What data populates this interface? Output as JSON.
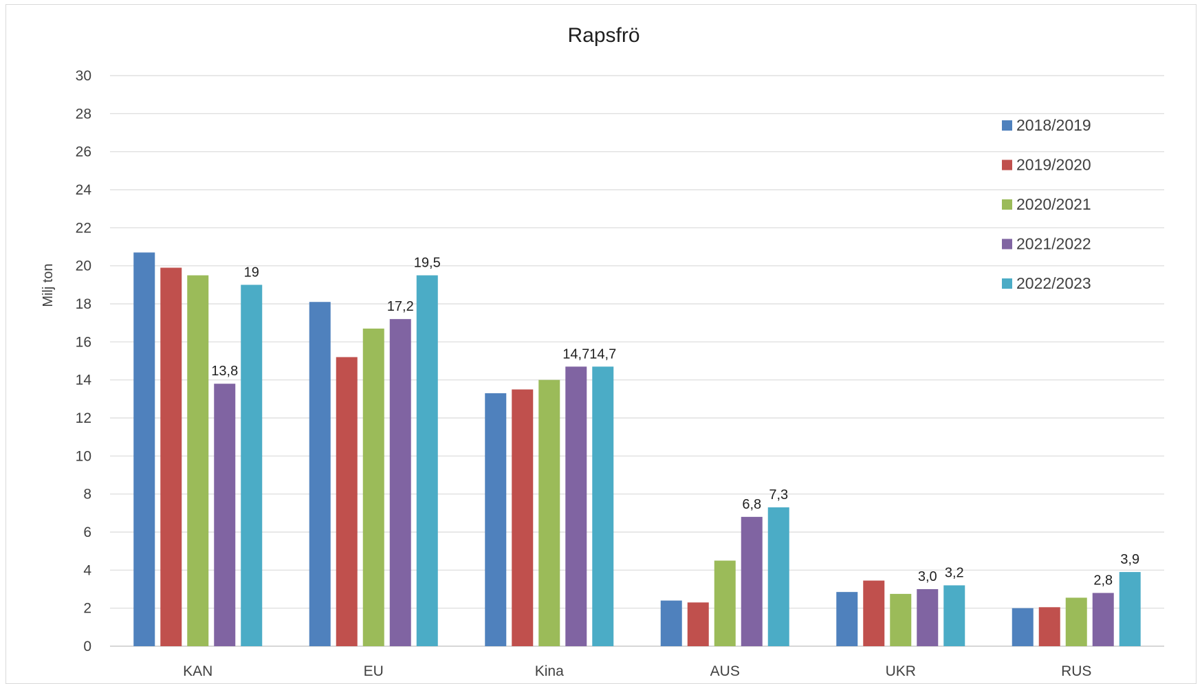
{
  "chart_data": {
    "type": "bar",
    "title": "Rapsfrö",
    "xlabel": "",
    "ylabel": "Milj ton",
    "ylim": [
      0,
      30
    ],
    "yticks": [
      0,
      2,
      4,
      6,
      8,
      10,
      12,
      14,
      16,
      18,
      20,
      22,
      24,
      26,
      28,
      30
    ],
    "grid": true,
    "legend_position": "right",
    "categories": [
      "KAN",
      "EU",
      "Kina",
      "AUS",
      "UKR",
      "RUS"
    ],
    "series": [
      {
        "name": "2018/2019",
        "color": "#4F81BD",
        "values": [
          20.7,
          18.1,
          13.3,
          2.4,
          2.85,
          2.0
        ]
      },
      {
        "name": "2019/2020",
        "color": "#C0504D",
        "values": [
          19.9,
          15.2,
          13.5,
          2.3,
          3.45,
          2.05
        ]
      },
      {
        "name": "2020/2021",
        "color": "#9BBB59",
        "values": [
          19.5,
          16.7,
          14.0,
          4.5,
          2.75,
          2.55
        ]
      },
      {
        "name": "2021/2022",
        "color": "#8064A2",
        "values": [
          13.8,
          17.2,
          14.7,
          6.8,
          3.0,
          2.8
        ]
      },
      {
        "name": "2022/2023",
        "color": "#4BACC6",
        "values": [
          19.0,
          19.5,
          14.7,
          7.3,
          3.2,
          3.9
        ]
      }
    ],
    "data_labels": [
      {
        "series": 3,
        "category": 0,
        "text": "13,8"
      },
      {
        "series": 4,
        "category": 0,
        "text": "19"
      },
      {
        "series": 3,
        "category": 1,
        "text": "17,2"
      },
      {
        "series": 4,
        "category": 1,
        "text": "19,5"
      },
      {
        "series": 3,
        "category": 2,
        "text": "14,7"
      },
      {
        "series": 4,
        "category": 2,
        "text": "14,7"
      },
      {
        "series": 3,
        "category": 3,
        "text": "6,8"
      },
      {
        "series": 4,
        "category": 3,
        "text": "7,3"
      },
      {
        "series": 3,
        "category": 4,
        "text": "3,0"
      },
      {
        "series": 4,
        "category": 4,
        "text": "3,2"
      },
      {
        "series": 3,
        "category": 5,
        "text": "2,8"
      },
      {
        "series": 4,
        "category": 5,
        "text": "3,9"
      }
    ]
  }
}
